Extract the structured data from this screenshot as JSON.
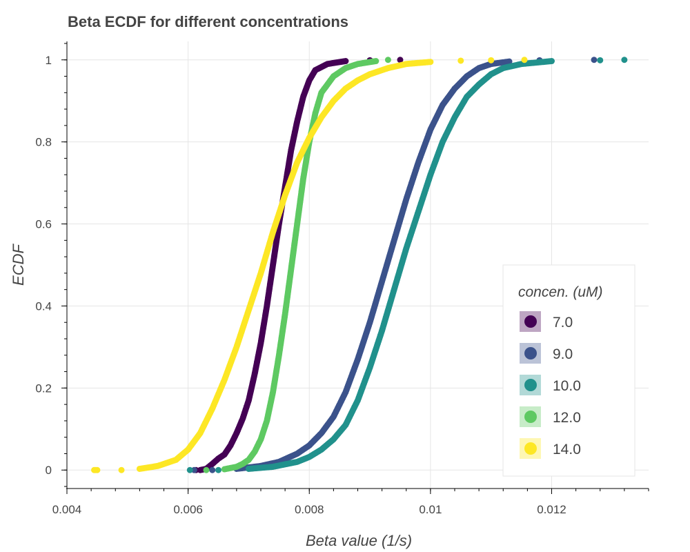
{
  "chart_data": {
    "type": "scatter",
    "title": "Beta ECDF for different concentrations",
    "xlabel": "Beta value (1/s)",
    "ylabel": "ECDF",
    "xlim": [
      0.004,
      0.0136
    ],
    "ylim": [
      -0.045,
      1.045
    ],
    "x_ticks": [
      0.004,
      0.006,
      0.008,
      0.01,
      0.012
    ],
    "x_tick_labels": [
      "0.004",
      "0.006",
      "0.008",
      "0.01",
      "0.012"
    ],
    "y_ticks": [
      0,
      0.2,
      0.4,
      0.6,
      0.8,
      1
    ],
    "y_tick_labels": [
      "0",
      "0.2",
      "0.4",
      "0.6",
      "0.8",
      "1"
    ],
    "grid": true,
    "legend_title": "concen. (uM)",
    "legend_position": "bottom-right",
    "series": [
      {
        "name": "7.0",
        "color": "#440154",
        "points": [
          [
            0.00613,
            0
          ],
          [
            0.0062,
            0
          ],
          [
            0.0063,
            0.003
          ],
          [
            0.0064,
            0.015
          ],
          [
            0.0065,
            0.028
          ],
          [
            0.0066,
            0.038
          ],
          [
            0.0067,
            0.06
          ],
          [
            0.0068,
            0.09
          ],
          [
            0.0069,
            0.125
          ],
          [
            0.007,
            0.17
          ],
          [
            0.0071,
            0.235
          ],
          [
            0.0072,
            0.31
          ],
          [
            0.0073,
            0.4
          ],
          [
            0.0074,
            0.5
          ],
          [
            0.0075,
            0.6
          ],
          [
            0.0076,
            0.69
          ],
          [
            0.0077,
            0.78
          ],
          [
            0.0078,
            0.85
          ],
          [
            0.0079,
            0.91
          ],
          [
            0.008,
            0.95
          ],
          [
            0.0081,
            0.975
          ],
          [
            0.0083,
            0.99
          ],
          [
            0.0086,
            0.997
          ],
          [
            0.009,
            0.999
          ],
          [
            0.0095,
            1
          ]
        ]
      },
      {
        "name": "9.0",
        "color": "#3b528b",
        "points": [
          [
            0.0061,
            0
          ],
          [
            0.0064,
            0
          ],
          [
            0.0068,
            0.003
          ],
          [
            0.0072,
            0.01
          ],
          [
            0.0075,
            0.02
          ],
          [
            0.0078,
            0.04
          ],
          [
            0.008,
            0.06
          ],
          [
            0.0082,
            0.09
          ],
          [
            0.0084,
            0.13
          ],
          [
            0.0086,
            0.19
          ],
          [
            0.0088,
            0.27
          ],
          [
            0.009,
            0.36
          ],
          [
            0.0092,
            0.46
          ],
          [
            0.0094,
            0.56
          ],
          [
            0.0096,
            0.66
          ],
          [
            0.0098,
            0.75
          ],
          [
            0.01,
            0.83
          ],
          [
            0.0102,
            0.89
          ],
          [
            0.0104,
            0.93
          ],
          [
            0.0106,
            0.96
          ],
          [
            0.0108,
            0.98
          ],
          [
            0.011,
            0.99
          ],
          [
            0.0113,
            0.996
          ],
          [
            0.0118,
            0.999
          ],
          [
            0.0127,
            1
          ]
        ]
      },
      {
        "name": "10.0",
        "color": "#21918c",
        "points": [
          [
            0.00603,
            0
          ],
          [
            0.0065,
            0
          ],
          [
            0.007,
            0.003
          ],
          [
            0.0074,
            0.008
          ],
          [
            0.0078,
            0.02
          ],
          [
            0.008,
            0.032
          ],
          [
            0.0082,
            0.05
          ],
          [
            0.0084,
            0.075
          ],
          [
            0.0086,
            0.11
          ],
          [
            0.0088,
            0.17
          ],
          [
            0.009,
            0.25
          ],
          [
            0.0092,
            0.34
          ],
          [
            0.0094,
            0.44
          ],
          [
            0.0096,
            0.54
          ],
          [
            0.0098,
            0.63
          ],
          [
            0.01,
            0.72
          ],
          [
            0.0102,
            0.8
          ],
          [
            0.0104,
            0.86
          ],
          [
            0.0106,
            0.91
          ],
          [
            0.0108,
            0.94
          ],
          [
            0.011,
            0.965
          ],
          [
            0.0112,
            0.98
          ],
          [
            0.0115,
            0.99
          ],
          [
            0.012,
            0.997
          ],
          [
            0.0128,
            0.999
          ],
          [
            0.0132,
            1
          ]
        ]
      },
      {
        "name": "12.0",
        "color": "#5ec962",
        "points": [
          [
            0.0063,
            0
          ],
          [
            0.0066,
            0.002
          ],
          [
            0.0068,
            0.008
          ],
          [
            0.0069,
            0.015
          ],
          [
            0.007,
            0.025
          ],
          [
            0.0071,
            0.045
          ],
          [
            0.0072,
            0.075
          ],
          [
            0.0073,
            0.12
          ],
          [
            0.0074,
            0.19
          ],
          [
            0.0075,
            0.28
          ],
          [
            0.0076,
            0.38
          ],
          [
            0.0077,
            0.49
          ],
          [
            0.0078,
            0.6
          ],
          [
            0.0079,
            0.71
          ],
          [
            0.008,
            0.8
          ],
          [
            0.0081,
            0.87
          ],
          [
            0.0082,
            0.92
          ],
          [
            0.0084,
            0.96
          ],
          [
            0.0086,
            0.98
          ],
          [
            0.0088,
            0.99
          ],
          [
            0.0091,
            0.997
          ],
          [
            0.0093,
            1
          ]
        ]
      },
      {
        "name": "14.0",
        "color": "#fde725",
        "points": [
          [
            0.00445,
            0
          ],
          [
            0.0045,
            0
          ],
          [
            0.0049,
            0
          ],
          [
            0.0052,
            0.003
          ],
          [
            0.0055,
            0.01
          ],
          [
            0.0058,
            0.025
          ],
          [
            0.006,
            0.05
          ],
          [
            0.0062,
            0.09
          ],
          [
            0.0064,
            0.15
          ],
          [
            0.0066,
            0.22
          ],
          [
            0.0068,
            0.3
          ],
          [
            0.007,
            0.39
          ],
          [
            0.0072,
            0.48
          ],
          [
            0.0074,
            0.58
          ],
          [
            0.0076,
            0.67
          ],
          [
            0.0078,
            0.75
          ],
          [
            0.008,
            0.81
          ],
          [
            0.0082,
            0.86
          ],
          [
            0.0084,
            0.9
          ],
          [
            0.0086,
            0.93
          ],
          [
            0.0088,
            0.95
          ],
          [
            0.009,
            0.965
          ],
          [
            0.0093,
            0.98
          ],
          [
            0.0096,
            0.99
          ],
          [
            0.01,
            0.995
          ],
          [
            0.0105,
            0.998
          ],
          [
            0.011,
            0.999
          ],
          [
            0.01155,
            1
          ]
        ]
      }
    ]
  }
}
